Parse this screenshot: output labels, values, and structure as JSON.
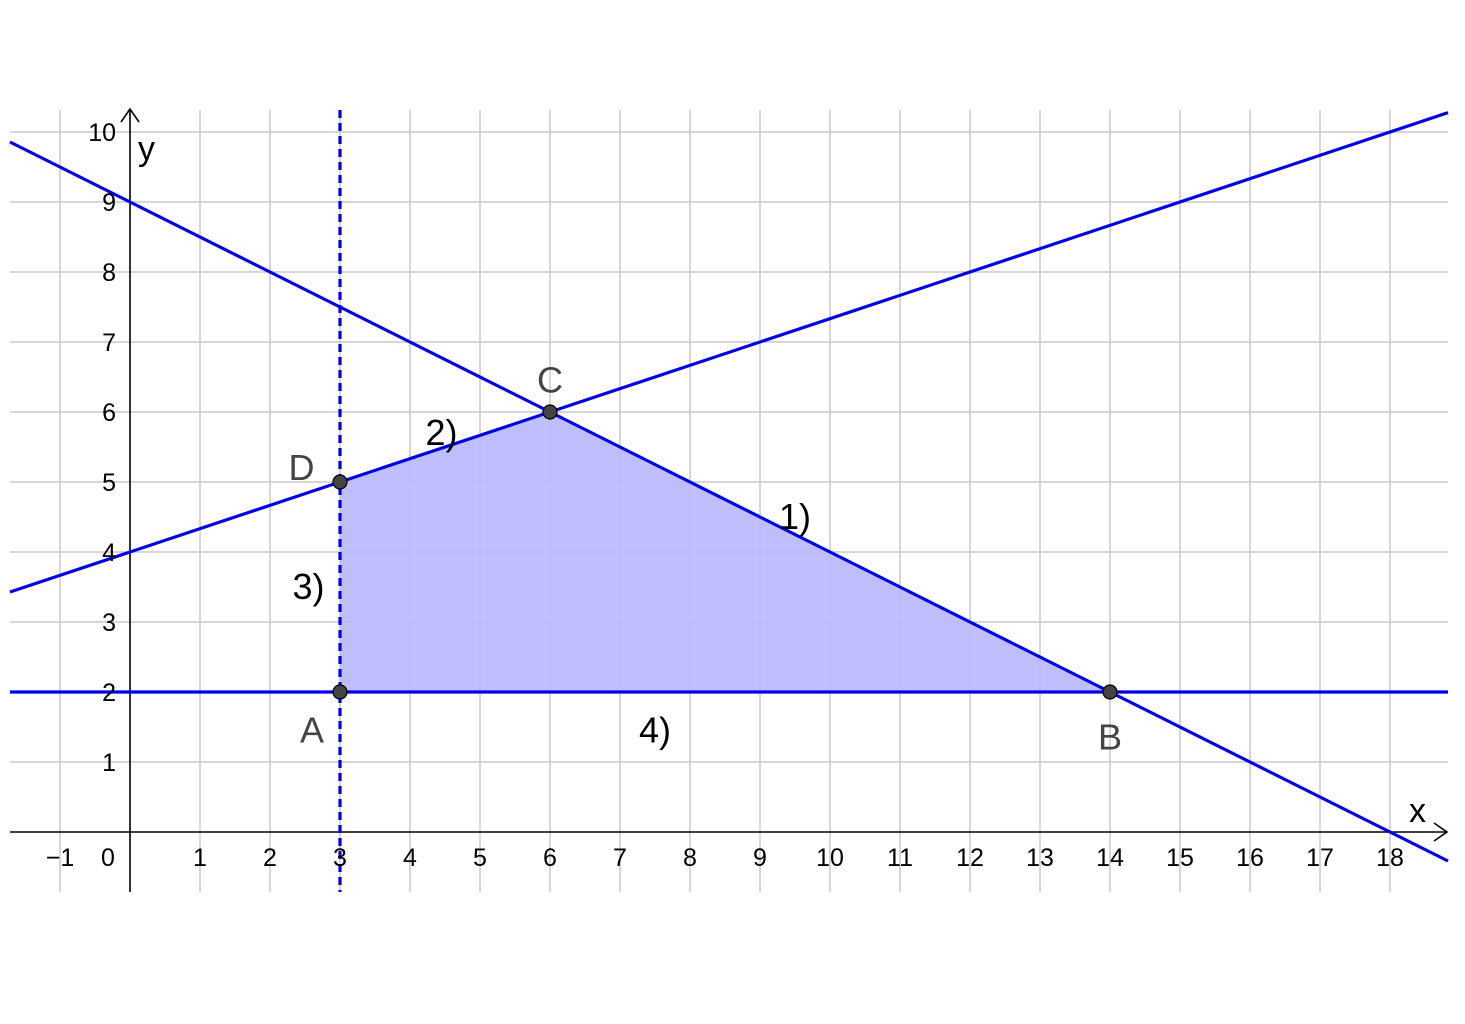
{
  "chart_data": {
    "type": "line",
    "xlabel": "x",
    "ylabel": "y",
    "xlim": [
      -1.85,
      18.5
    ],
    "ylim": [
      -0.85,
      10.35
    ],
    "grid": true,
    "x_ticks": [
      "−1",
      "0",
      "1",
      "2",
      "3",
      "4",
      "5",
      "6",
      "7",
      "8",
      "9",
      "10",
      "11",
      "12",
      "13",
      "14",
      "15",
      "16",
      "17",
      "18"
    ],
    "x_tick_values": [
      -1,
      0,
      1,
      2,
      3,
      4,
      5,
      6,
      7,
      8,
      9,
      10,
      11,
      12,
      13,
      14,
      15,
      16,
      17,
      18
    ],
    "y_ticks": [
      "1",
      "2",
      "3",
      "4",
      "5",
      "6",
      "7",
      "8",
      "9",
      "10"
    ],
    "y_tick_values": [
      1,
      2,
      3,
      4,
      5,
      6,
      7,
      8,
      9,
      10
    ],
    "colors": {
      "line": "#0000e6",
      "fill": "#bcbcff",
      "point": "#444444",
      "grid": "#c8c8c8",
      "axis": "#000000"
    },
    "lines": [
      {
        "label": "1)",
        "kind": "sloped",
        "p1": [
          0,
          9
        ],
        "p2": [
          18,
          0
        ],
        "dashed": false,
        "label_pos": [
          9.5,
          4.5
        ]
      },
      {
        "label": "2)",
        "kind": "sloped",
        "p1": [
          0,
          4
        ],
        "p2": [
          6,
          6
        ],
        "dashed": false,
        "label_pos": [
          4.45,
          5.7
        ]
      },
      {
        "label": "3)",
        "kind": "vertical",
        "x": 3,
        "dashed": true,
        "label_pos": [
          2.55,
          3.5
        ]
      },
      {
        "label": "4)",
        "kind": "horizontal",
        "y": 2,
        "dashed": false,
        "label_pos": [
          7.5,
          1.45
        ]
      }
    ],
    "points": [
      {
        "name": "A",
        "x": 3,
        "y": 2,
        "label_pos": [
          2.6,
          1.45
        ]
      },
      {
        "name": "B",
        "x": 14,
        "y": 2,
        "label_pos": [
          14,
          1.35
        ]
      },
      {
        "name": "C",
        "x": 6,
        "y": 6,
        "label_pos": [
          6,
          6.45
        ]
      },
      {
        "name": "D",
        "x": 3,
        "y": 5,
        "label_pos": [
          2.45,
          5.2
        ]
      }
    ],
    "region": [
      [
        3,
        2
      ],
      [
        14,
        2
      ],
      [
        6,
        6
      ],
      [
        3,
        5
      ]
    ]
  }
}
